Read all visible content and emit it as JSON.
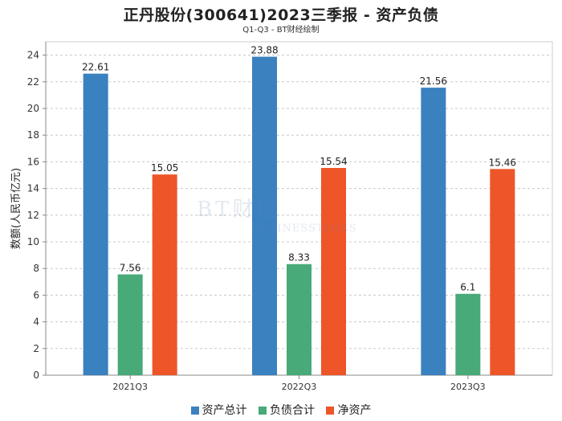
{
  "chart_data": {
    "type": "bar",
    "title": "正丹股份(300641)2023三季报 - 资产负债",
    "subtitle": "Q1-Q3 - BT财经绘制",
    "ylabel": "数额(人民币亿元)",
    "xlabel": "",
    "categories": [
      "2021Q3",
      "2022Q3",
      "2023Q3"
    ],
    "ylim": [
      0,
      25
    ],
    "yticks": [
      0,
      2,
      4,
      6,
      8,
      10,
      12,
      14,
      16,
      18,
      20,
      22,
      24
    ],
    "grid": true,
    "legend_position": "bottom",
    "series": [
      {
        "name": "资产总计",
        "color": "#3a81c0",
        "values": [
          22.61,
          23.88,
          21.56
        ],
        "labels": [
          "22.61",
          "23.88",
          "21.56"
        ]
      },
      {
        "name": "负债合计",
        "color": "#47aa78",
        "values": [
          7.56,
          8.33,
          6.1
        ],
        "labels": [
          "7.56",
          "8.33",
          "6.1"
        ]
      },
      {
        "name": "净资产",
        "color": "#ee5528",
        "values": [
          15.05,
          15.54,
          15.46
        ],
        "labels": [
          "15.05",
          "15.54",
          "15.46"
        ]
      }
    ]
  },
  "watermark": {
    "logo_text": "BT财经",
    "sub_text": "BUSINESSTIMES"
  }
}
